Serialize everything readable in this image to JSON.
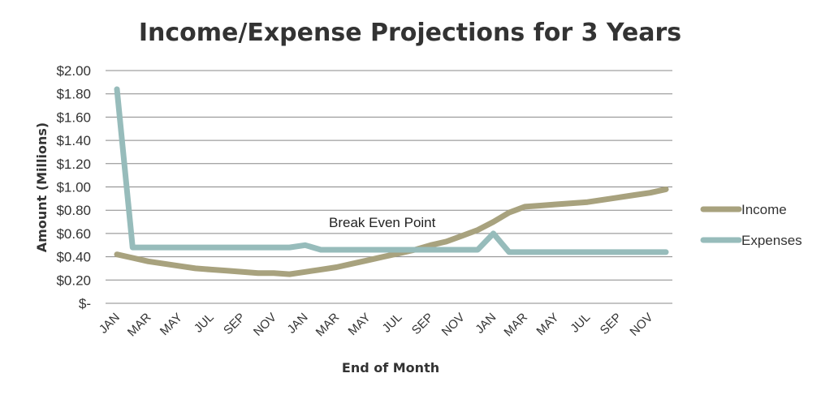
{
  "chart_data": {
    "type": "line",
    "title": "Income/Expense Projections for 3 Years",
    "xlabel": "End of Month",
    "ylabel": "Amount (Millions)",
    "ylim": [
      0,
      2.0
    ],
    "yticks": [
      "$-",
      "$0.20",
      "$0.40",
      "$0.60",
      "$0.80",
      "$1.00",
      "$1.20",
      "$1.40",
      "$1.60",
      "$1.80",
      "$2.00"
    ],
    "grid": true,
    "legend_position": "right",
    "x": [
      "JAN",
      "FEB",
      "MAR",
      "APR",
      "MAY",
      "JUN",
      "JUL",
      "AUG",
      "SEP",
      "OCT",
      "NOV",
      "DEC",
      "JAN",
      "FEB",
      "MAR",
      "APR",
      "MAY",
      "JUN",
      "JUL",
      "AUG",
      "SEP",
      "OCT",
      "NOV",
      "DEC",
      "JAN",
      "FEB",
      "MAR",
      "APR",
      "MAY",
      "JUN",
      "JUL",
      "AUG",
      "SEP",
      "OCT",
      "NOV",
      "DEC"
    ],
    "x_tick_labels": [
      "JAN",
      "",
      "MAR",
      "",
      "MAY",
      "",
      "JUL",
      "",
      "SEP",
      "",
      "NOV",
      "",
      "JAN",
      "",
      "MAR",
      "",
      "MAY",
      "",
      "JUL",
      "",
      "SEP",
      "",
      "NOV",
      "",
      "JAN",
      "",
      "MAR",
      "",
      "MAY",
      "",
      "JUL",
      "",
      "SEP",
      "",
      "NOV",
      ""
    ],
    "series": [
      {
        "name": "Income",
        "color": "#A8A27E",
        "values": [
          0.42,
          0.39,
          0.36,
          0.34,
          0.32,
          0.3,
          0.29,
          0.28,
          0.27,
          0.26,
          0.26,
          0.25,
          0.27,
          0.29,
          0.31,
          0.34,
          0.37,
          0.4,
          0.43,
          0.46,
          0.5,
          0.53,
          0.58,
          0.63,
          0.7,
          0.78,
          0.83,
          0.84,
          0.85,
          0.86,
          0.87,
          0.89,
          0.91,
          0.93,
          0.95,
          0.98
        ]
      },
      {
        "name": "Expenses",
        "color": "#97BCBB",
        "values": [
          1.84,
          0.48,
          0.48,
          0.48,
          0.48,
          0.48,
          0.48,
          0.48,
          0.48,
          0.48,
          0.48,
          0.48,
          0.5,
          0.46,
          0.46,
          0.46,
          0.46,
          0.46,
          0.46,
          0.46,
          0.46,
          0.46,
          0.46,
          0.46,
          0.6,
          0.44,
          0.44,
          0.44,
          0.44,
          0.44,
          0.44,
          0.44,
          0.44,
          0.44,
          0.44,
          0.44
        ]
      }
    ],
    "annotations": [
      {
        "text": "Break Even Point",
        "x_index": 17,
        "y": 0.58
      }
    ]
  }
}
